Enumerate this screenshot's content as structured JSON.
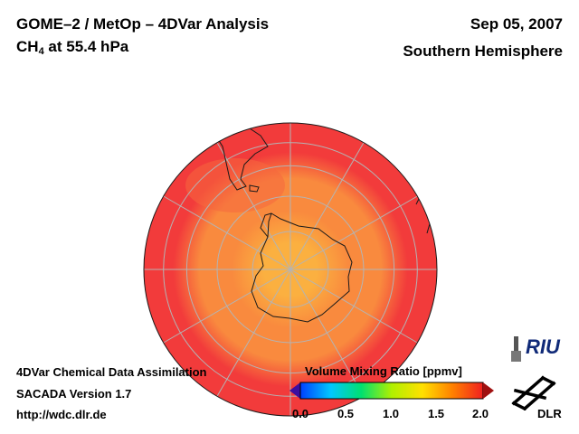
{
  "header": {
    "title_line1": "GOME–2 / MetOp – 4DVar Analysis",
    "species_main": "CH",
    "species_sub": "4",
    "species_rest": " at 55.4 hPa",
    "date": "Sep 05, 2007",
    "hemisphere": "Southern Hemisphere"
  },
  "footer": {
    "line1": "4DVar Chemical Data Assimilation",
    "line2": "SACADA Version 1.7",
    "line3": "http://wdc.dlr.de"
  },
  "colorbar": {
    "title": "Volume Mixing Ratio [ppmv]",
    "ticks": [
      "0.0",
      "0.5",
      "1.0",
      "1.5",
      "2.0"
    ],
    "min": 0.0,
    "max": 2.0,
    "colors": [
      "#3c0ea0",
      "#0040ff",
      "#00c8ff",
      "#00e070",
      "#b0f000",
      "#ffe000",
      "#ff8000",
      "#f02020",
      "#a01010"
    ]
  },
  "map": {
    "projection": "orthographic, south polar view",
    "background_vmr": 1.6,
    "center_min_vmr": 1.25,
    "colors": {
      "outer": "#f23b3b",
      "ring": "#f98a3e",
      "inner": "#fbb040",
      "grid": "#b4b4b4",
      "coast": "#1a1a1a"
    }
  },
  "logos": {
    "riu": "RIU",
    "dlr": "DLR"
  }
}
